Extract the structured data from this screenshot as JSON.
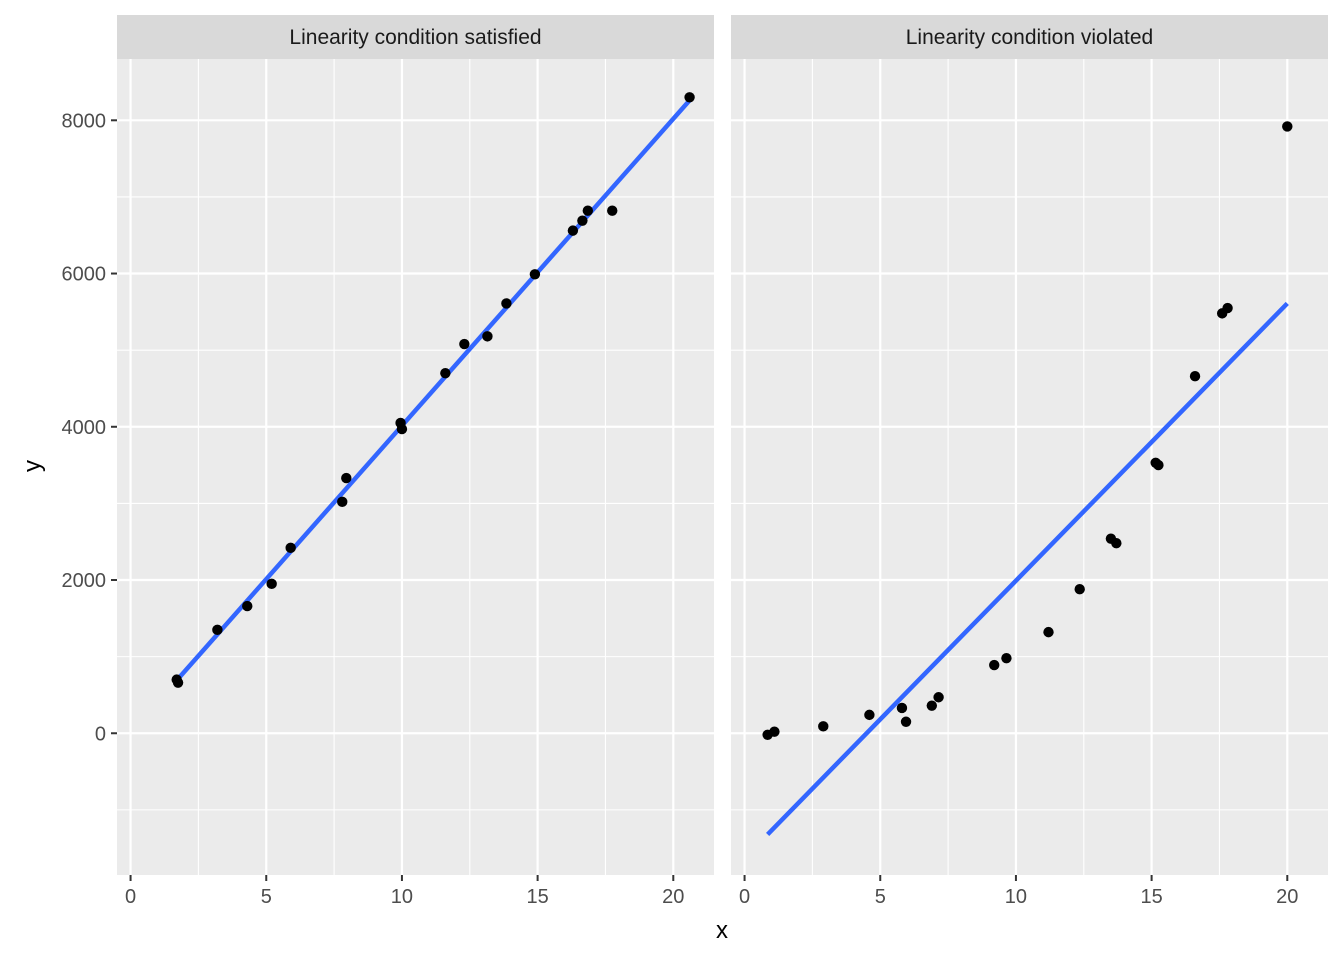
{
  "chart_data": {
    "type": "scatter",
    "xlabel": "x",
    "ylabel": "y",
    "xlim": [
      -0.5,
      21.5
    ],
    "ylim": [
      -1850,
      8800
    ],
    "x_ticks": [
      0,
      5,
      10,
      15,
      20
    ],
    "y_ticks": [
      0,
      2000,
      4000,
      6000,
      8000
    ],
    "grid": true,
    "colors": {
      "panel_bg": "#ebebeb",
      "strip_bg": "#d9d9d9",
      "grid": "#ffffff",
      "point": "#000000",
      "line": "#3366ff"
    },
    "panels": [
      {
        "title": "Linearity condition satisfied",
        "points": [
          {
            "x": 1.7,
            "y": 700
          },
          {
            "x": 1.75,
            "y": 660
          },
          {
            "x": 3.2,
            "y": 1350
          },
          {
            "x": 4.3,
            "y": 1660
          },
          {
            "x": 5.2,
            "y": 1950
          },
          {
            "x": 5.9,
            "y": 2420
          },
          {
            "x": 7.8,
            "y": 3020
          },
          {
            "x": 7.95,
            "y": 3330
          },
          {
            "x": 9.95,
            "y": 4050
          },
          {
            "x": 10.0,
            "y": 3970
          },
          {
            "x": 11.6,
            "y": 4700
          },
          {
            "x": 12.3,
            "y": 5080
          },
          {
            "x": 13.15,
            "y": 5180
          },
          {
            "x": 13.85,
            "y": 5610
          },
          {
            "x": 14.9,
            "y": 5990
          },
          {
            "x": 16.3,
            "y": 6560
          },
          {
            "x": 16.65,
            "y": 6690
          },
          {
            "x": 16.85,
            "y": 6820
          },
          {
            "x": 17.75,
            "y": 6820
          },
          {
            "x": 20.6,
            "y": 8300
          }
        ],
        "fit": [
          {
            "x": 1.7,
            "y": 690
          },
          {
            "x": 20.6,
            "y": 8260
          }
        ]
      },
      {
        "title": "Linearity condition violated",
        "points": [
          {
            "x": 0.85,
            "y": -20
          },
          {
            "x": 1.1,
            "y": 20
          },
          {
            "x": 2.9,
            "y": 90
          },
          {
            "x": 4.6,
            "y": 240
          },
          {
            "x": 5.8,
            "y": 330
          },
          {
            "x": 5.95,
            "y": 150
          },
          {
            "x": 6.9,
            "y": 360
          },
          {
            "x": 7.15,
            "y": 470
          },
          {
            "x": 9.2,
            "y": 890
          },
          {
            "x": 9.65,
            "y": 980
          },
          {
            "x": 11.2,
            "y": 1320
          },
          {
            "x": 12.35,
            "y": 1880
          },
          {
            "x": 13.5,
            "y": 2540
          },
          {
            "x": 13.7,
            "y": 2480
          },
          {
            "x": 15.15,
            "y": 3530
          },
          {
            "x": 15.25,
            "y": 3500
          },
          {
            "x": 16.6,
            "y": 4660
          },
          {
            "x": 17.6,
            "y": 5480
          },
          {
            "x": 17.8,
            "y": 5550
          },
          {
            "x": 20.0,
            "y": 7920
          }
        ],
        "fit": [
          {
            "x": 0.85,
            "y": -1320
          },
          {
            "x": 20.0,
            "y": 5610
          }
        ]
      }
    ]
  }
}
